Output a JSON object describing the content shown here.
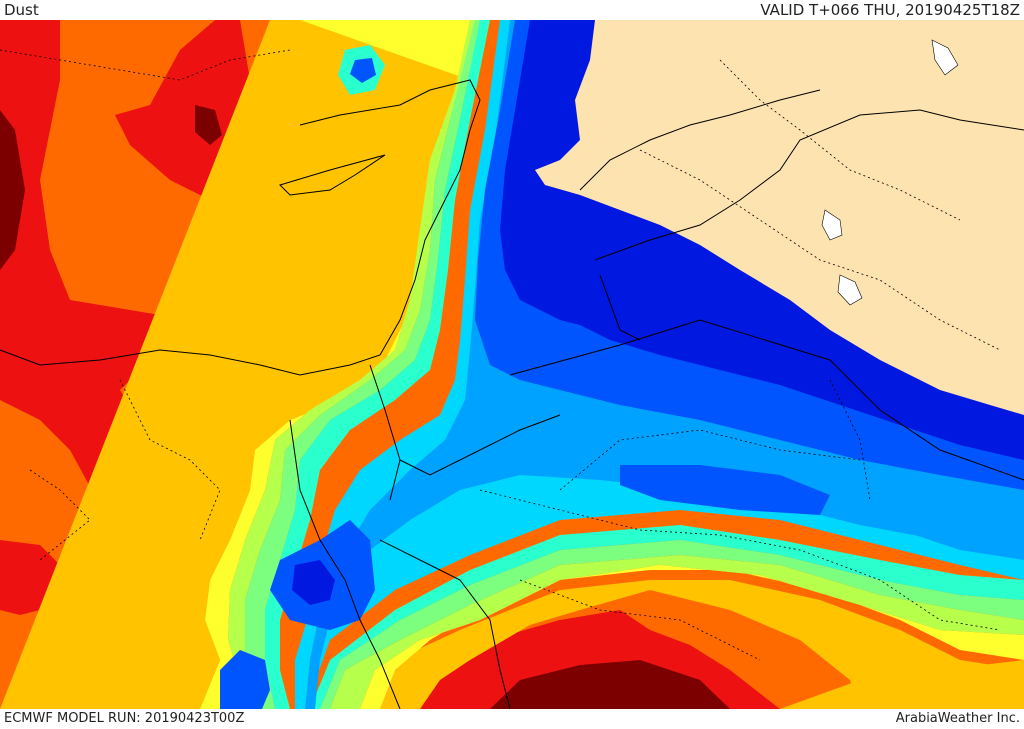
{
  "header": {
    "title": "Dust",
    "valid": "VALID T+066 THU, 20190425T18Z"
  },
  "footer": {
    "model_run": "ECMWF MODEL RUN: 20190423T00Z",
    "credit": "ArabiaWeather Inc."
  },
  "colors": {
    "land_no_data": "#fde3b0",
    "darkred": "#7c0000",
    "red": "#ee1111",
    "orange": "#ff6a00",
    "gold": "#ffc300",
    "yellow": "#ffff2e",
    "lime": "#b6ff4a",
    "green": "#7cff7e",
    "aqua": "#2affce",
    "cyan": "#00d7ff",
    "sky": "#00a2ff",
    "blue": "#0055ff",
    "navy": "#0018e0",
    "border": "#000000",
    "water_body": "#ffffff"
  }
}
